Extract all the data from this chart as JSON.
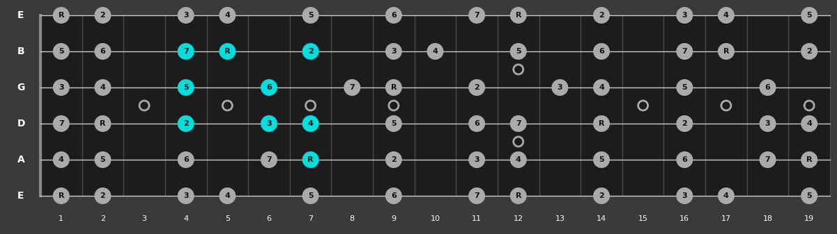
{
  "bg_color": "#3a3a3a",
  "board_color": "#1c1c1c",
  "fret_line_color": "#4a4a4a",
  "nut_color": "#888888",
  "string_color": "#cccccc",
  "note_color_gray": "#aaaaaa",
  "note_color_cyan": "#00dddd",
  "note_text_color": "#111111",
  "open_circle_edge": "#aaaaaa",
  "string_labels": [
    "E",
    "B",
    "G",
    "D",
    "A",
    "E"
  ],
  "num_frets": 19,
  "fret_markers_single": [
    3,
    5,
    7,
    9,
    15,
    17,
    19
  ],
  "fret_markers_double": [
    12
  ],
  "notes": [
    {
      "string": 0,
      "fret": 1,
      "label": "R",
      "cyan": false
    },
    {
      "string": 0,
      "fret": 2,
      "label": "2",
      "cyan": false
    },
    {
      "string": 0,
      "fret": 4,
      "label": "3",
      "cyan": false
    },
    {
      "string": 0,
      "fret": 5,
      "label": "4",
      "cyan": false
    },
    {
      "string": 0,
      "fret": 7,
      "label": "5",
      "cyan": false
    },
    {
      "string": 0,
      "fret": 9,
      "label": "6",
      "cyan": false
    },
    {
      "string": 0,
      "fret": 11,
      "label": "7",
      "cyan": false
    },
    {
      "string": 0,
      "fret": 12,
      "label": "R",
      "cyan": false
    },
    {
      "string": 0,
      "fret": 14,
      "label": "2",
      "cyan": false
    },
    {
      "string": 0,
      "fret": 16,
      "label": "3",
      "cyan": false
    },
    {
      "string": 0,
      "fret": 17,
      "label": "4",
      "cyan": false
    },
    {
      "string": 0,
      "fret": 19,
      "label": "5",
      "cyan": false
    },
    {
      "string": 1,
      "fret": 1,
      "label": "5",
      "cyan": false
    },
    {
      "string": 1,
      "fret": 2,
      "label": "6",
      "cyan": false
    },
    {
      "string": 1,
      "fret": 4,
      "label": "7",
      "cyan": true
    },
    {
      "string": 1,
      "fret": 5,
      "label": "R",
      "cyan": true
    },
    {
      "string": 1,
      "fret": 7,
      "label": "2",
      "cyan": true
    },
    {
      "string": 1,
      "fret": 9,
      "label": "3",
      "cyan": false
    },
    {
      "string": 1,
      "fret": 10,
      "label": "4",
      "cyan": false
    },
    {
      "string": 1,
      "fret": 12,
      "label": "5",
      "cyan": false
    },
    {
      "string": 1,
      "fret": 14,
      "label": "6",
      "cyan": false
    },
    {
      "string": 1,
      "fret": 16,
      "label": "7",
      "cyan": false
    },
    {
      "string": 1,
      "fret": 17,
      "label": "R",
      "cyan": false
    },
    {
      "string": 1,
      "fret": 19,
      "label": "2",
      "cyan": false
    },
    {
      "string": 2,
      "fret": 1,
      "label": "3",
      "cyan": false
    },
    {
      "string": 2,
      "fret": 2,
      "label": "4",
      "cyan": false
    },
    {
      "string": 2,
      "fret": 4,
      "label": "5",
      "cyan": true
    },
    {
      "string": 2,
      "fret": 6,
      "label": "6",
      "cyan": true
    },
    {
      "string": 2,
      "fret": 8,
      "label": "7",
      "cyan": false
    },
    {
      "string": 2,
      "fret": 9,
      "label": "R",
      "cyan": false
    },
    {
      "string": 2,
      "fret": 11,
      "label": "2",
      "cyan": false
    },
    {
      "string": 2,
      "fret": 13,
      "label": "3",
      "cyan": false
    },
    {
      "string": 2,
      "fret": 14,
      "label": "4",
      "cyan": false
    },
    {
      "string": 2,
      "fret": 16,
      "label": "5",
      "cyan": false
    },
    {
      "string": 2,
      "fret": 18,
      "label": "6",
      "cyan": false
    },
    {
      "string": 3,
      "fret": 1,
      "label": "7",
      "cyan": false
    },
    {
      "string": 3,
      "fret": 2,
      "label": "R",
      "cyan": false
    },
    {
      "string": 3,
      "fret": 4,
      "label": "2",
      "cyan": true
    },
    {
      "string": 3,
      "fret": 6,
      "label": "3",
      "cyan": true
    },
    {
      "string": 3,
      "fret": 7,
      "label": "4",
      "cyan": true
    },
    {
      "string": 3,
      "fret": 9,
      "label": "5",
      "cyan": false
    },
    {
      "string": 3,
      "fret": 11,
      "label": "6",
      "cyan": false
    },
    {
      "string": 3,
      "fret": 12,
      "label": "7",
      "cyan": false
    },
    {
      "string": 3,
      "fret": 14,
      "label": "R",
      "cyan": false
    },
    {
      "string": 3,
      "fret": 16,
      "label": "2",
      "cyan": false
    },
    {
      "string": 3,
      "fret": 18,
      "label": "3",
      "cyan": false
    },
    {
      "string": 3,
      "fret": 19,
      "label": "4",
      "cyan": false
    },
    {
      "string": 4,
      "fret": 1,
      "label": "4",
      "cyan": false
    },
    {
      "string": 4,
      "fret": 2,
      "label": "5",
      "cyan": false
    },
    {
      "string": 4,
      "fret": 4,
      "label": "6",
      "cyan": false
    },
    {
      "string": 4,
      "fret": 6,
      "label": "7",
      "cyan": false
    },
    {
      "string": 4,
      "fret": 7,
      "label": "R",
      "cyan": true
    },
    {
      "string": 4,
      "fret": 9,
      "label": "2",
      "cyan": false
    },
    {
      "string": 4,
      "fret": 11,
      "label": "3",
      "cyan": false
    },
    {
      "string": 4,
      "fret": 12,
      "label": "4",
      "cyan": false
    },
    {
      "string": 4,
      "fret": 14,
      "label": "5",
      "cyan": false
    },
    {
      "string": 4,
      "fret": 16,
      "label": "6",
      "cyan": false
    },
    {
      "string": 4,
      "fret": 18,
      "label": "7",
      "cyan": false
    },
    {
      "string": 4,
      "fret": 19,
      "label": "R",
      "cyan": false
    },
    {
      "string": 5,
      "fret": 1,
      "label": "R",
      "cyan": false
    },
    {
      "string": 5,
      "fret": 2,
      "label": "2",
      "cyan": false
    },
    {
      "string": 5,
      "fret": 4,
      "label": "3",
      "cyan": false
    },
    {
      "string": 5,
      "fret": 5,
      "label": "4",
      "cyan": false
    },
    {
      "string": 5,
      "fret": 7,
      "label": "5",
      "cyan": false
    },
    {
      "string": 5,
      "fret": 9,
      "label": "6",
      "cyan": false
    },
    {
      "string": 5,
      "fret": 11,
      "label": "7",
      "cyan": false
    },
    {
      "string": 5,
      "fret": 12,
      "label": "R",
      "cyan": false
    },
    {
      "string": 5,
      "fret": 14,
      "label": "2",
      "cyan": false
    },
    {
      "string": 5,
      "fret": 16,
      "label": "3",
      "cyan": false
    },
    {
      "string": 5,
      "fret": 17,
      "label": "4",
      "cyan": false
    },
    {
      "string": 5,
      "fret": 19,
      "label": "5",
      "cyan": false
    }
  ]
}
